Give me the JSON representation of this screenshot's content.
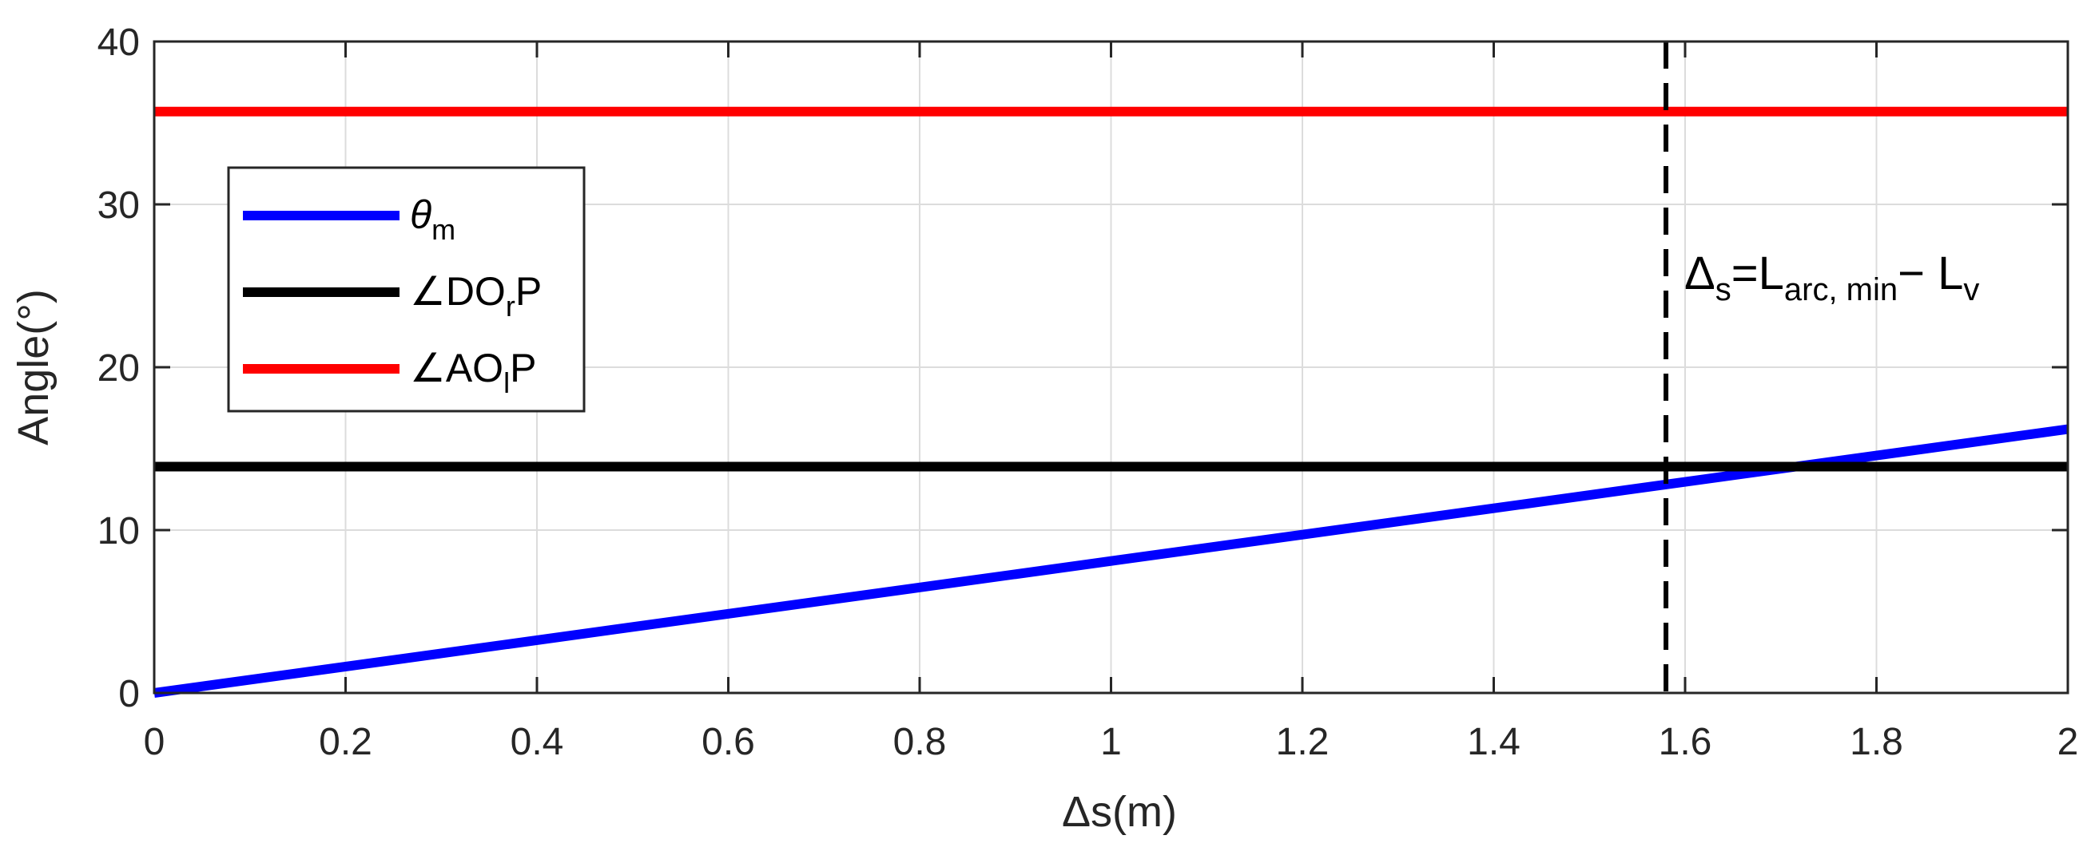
{
  "chart_data": {
    "type": "line",
    "xlabel": "Δs(m)",
    "ylabel": "Angle(°)",
    "xlim": [
      0,
      2
    ],
    "ylim": [
      0,
      40
    ],
    "xticks": [
      0,
      0.2,
      0.4,
      0.6,
      0.8,
      1,
      1.2,
      1.4,
      1.6,
      1.8,
      2
    ],
    "xtick_labels": [
      "0",
      "0.2",
      "0.4",
      "0.6",
      "0.8",
      "1",
      "1.2",
      "1.4",
      "1.6",
      "1.8",
      "2"
    ],
    "yticks": [
      0,
      10,
      20,
      30,
      40
    ],
    "ytick_labels": [
      "0",
      "10",
      "20",
      "30",
      "40"
    ],
    "grid": true,
    "legend_position": "upper-left",
    "series": [
      {
        "name": "θm",
        "legend_main": "θ",
        "legend_sub": "m",
        "color": "#0000ff",
        "x": [
          0,
          2
        ],
        "y": [
          0,
          16.2
        ]
      },
      {
        "name": "∠DOrP",
        "legend_main": "∠DO",
        "legend_sub": "r",
        "legend_tail": "P",
        "color": "#000000",
        "x": [
          0,
          2
        ],
        "y": [
          13.9,
          13.9
        ]
      },
      {
        "name": "∠AOlP",
        "legend_main": "∠AO",
        "legend_sub": "l",
        "legend_tail": "P",
        "color": "#ff0000",
        "x": [
          0,
          2
        ],
        "y": [
          35.7,
          35.7
        ]
      }
    ],
    "vline": {
      "x": 1.58,
      "style": "dashed",
      "color": "#000000"
    },
    "annotation": {
      "text": "Δs=Larc, min− Lv",
      "part1": "Δ",
      "sub1": "s",
      "part2": "=L",
      "sub2": "arc, min",
      "part3": "− L",
      "sub3": "v"
    }
  }
}
